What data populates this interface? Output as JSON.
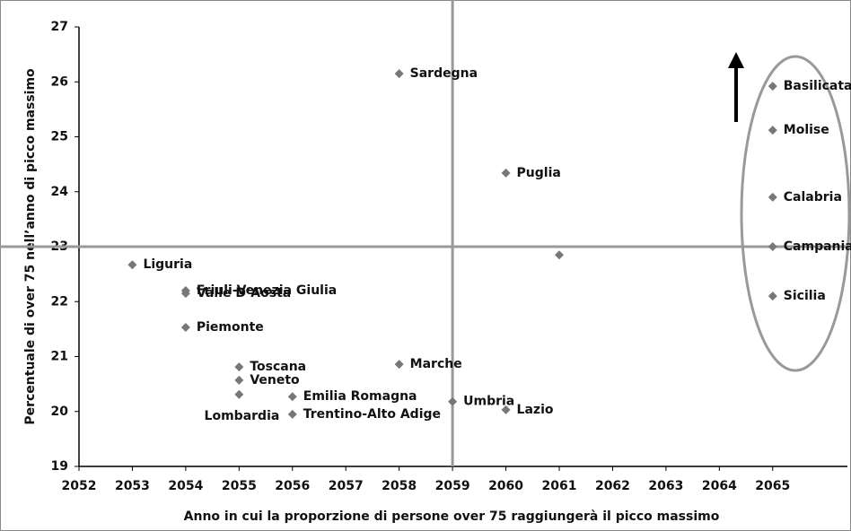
{
  "chart_data": {
    "type": "scatter",
    "xlabel": "Anno in cui la proporzione di persone over 75 raggiungerà il picco massimo",
    "ylabel": "Percentuale di over 75 nell’anno di picco massimo",
    "labels": [
      "Sardegna",
      "Basilicata",
      "Molise",
      "Puglia",
      "Calabria",
      null,
      "Campania",
      "Sicilia",
      "Liguria",
      "Friuli-Venezia Giulia",
      "Valle D’Aosta",
      "Piemonte",
      "Toscana",
      "Veneto",
      "Lombardia",
      "Marche",
      "Emilia Romagna",
      "Trentino-Alto Adige",
      "Umbria",
      "Lazio"
    ],
    "x": [
      2058,
      2065,
      2065,
      2060,
      2065,
      2061,
      2065,
      2065,
      2053,
      2054,
      2054,
      2054,
      2055,
      2055,
      2055,
      2058,
      2056,
      2056,
      2059,
      2060
    ],
    "values": [
      26.15,
      25.92,
      25.12,
      24.34,
      23.9,
      22.85,
      23.0,
      22.1,
      22.67,
      22.2,
      22.15,
      21.53,
      20.81,
      20.57,
      20.31,
      20.86,
      20.27,
      19.95,
      20.18,
      20.03
    ],
    "color": "#777777",
    "xlim": [
      2052,
      2066.4
    ],
    "xticks": [
      2052,
      2053,
      2054,
      2055,
      2056,
      2057,
      2058,
      2059,
      2060,
      2061,
      2062,
      2063,
      2064,
      2065
    ],
    "ylim": [
      19,
      27
    ],
    "yticks": [
      19,
      20,
      21,
      22,
      23,
      24,
      25,
      26,
      27
    ],
    "reference_x": 2059,
    "reference_y": 23
  }
}
